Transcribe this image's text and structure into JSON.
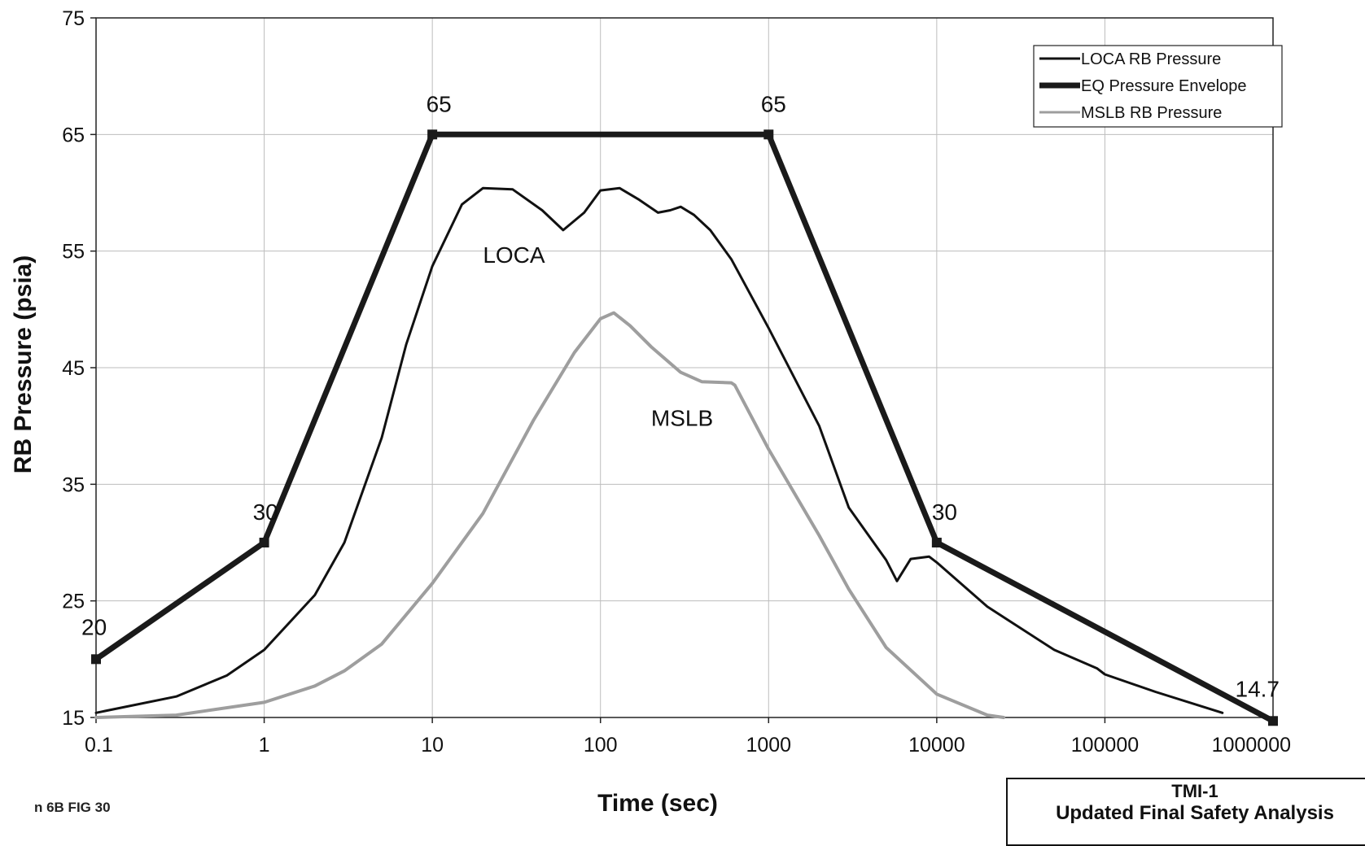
{
  "chart_data": {
    "type": "line",
    "xlabel": "Time (sec)",
    "ylabel": "RB Pressure (psia)",
    "xscale": "log",
    "xlim": [
      0.1,
      1000000
    ],
    "ylim": [
      15,
      75
    ],
    "x_ticks": [
      0.1,
      1,
      10,
      100,
      1000,
      10000,
      100000,
      1000000
    ],
    "x_tick_labels": [
      "0.1",
      "1",
      "10",
      "100",
      "1000",
      "10000",
      "100000",
      "1000000"
    ],
    "y_ticks": [
      15,
      25,
      35,
      45,
      55,
      65,
      75
    ],
    "y_tick_labels": [
      "15",
      "25",
      "35",
      "45",
      "55",
      "65",
      "75"
    ],
    "grid": true,
    "legend_position": "top-right",
    "series": [
      {
        "name": "LOCA RB Pressure",
        "color": "#111111",
        "x": [
          0.1,
          0.3,
          0.6,
          1,
          2,
          3,
          5,
          7,
          10,
          15,
          20,
          30,
          45,
          60,
          80,
          100,
          130,
          170,
          220,
          260,
          300,
          360,
          450,
          600,
          1000,
          2000,
          3000,
          5000,
          5800,
          7000,
          9000,
          10000,
          20000,
          50000,
          90000,
          100000,
          200000,
          500000
        ],
        "y": [
          15.4,
          16.8,
          18.6,
          20.8,
          25.5,
          30,
          39,
          47,
          53.7,
          59,
          60.4,
          60.3,
          58.5,
          56.8,
          58.3,
          60.2,
          60.4,
          59.4,
          58.3,
          58.5,
          58.8,
          58.1,
          56.8,
          54.3,
          48.4,
          40,
          33,
          28.5,
          26.7,
          28.6,
          28.8,
          28.3,
          24.5,
          20.8,
          19.2,
          18.7,
          17.2,
          15.4
        ]
      },
      {
        "name": "EQ Pressure Envelope",
        "color": "#1a1a1a",
        "x": [
          0.1,
          1,
          10,
          1000,
          10000,
          1000000
        ],
        "y": [
          20,
          30,
          65,
          65,
          30,
          14.7
        ]
      },
      {
        "name": "MSLB RB Pressure",
        "color": "#9e9e9e",
        "x": [
          0.1,
          0.3,
          1,
          2,
          3,
          5,
          10,
          20,
          40,
          70,
          100,
          120,
          150,
          200,
          300,
          400,
          600,
          630,
          1000,
          2000,
          3000,
          5000,
          10000,
          20000,
          25000
        ],
        "y": [
          15,
          15.2,
          16.3,
          17.7,
          19,
          21.3,
          26.5,
          32.5,
          40.5,
          46.3,
          49.2,
          49.7,
          48.6,
          46.8,
          44.6,
          43.8,
          43.7,
          43.5,
          38,
          30.6,
          26,
          21,
          17,
          15.2,
          15
        ]
      }
    ],
    "annotations": [
      {
        "text": "20",
        "x": 0.1,
        "y": 20
      },
      {
        "text": "30",
        "x": 1,
        "y": 30
      },
      {
        "text": "65",
        "x": 10,
        "y": 65
      },
      {
        "text": "65",
        "x": 1000,
        "y": 65
      },
      {
        "text": "30",
        "x": 10000,
        "y": 30
      },
      {
        "text": "14.7",
        "x": 1000000,
        "y": 14.7
      },
      {
        "text": "LOCA",
        "x": 20,
        "y": 54
      },
      {
        "text": "MSLB",
        "x": 200,
        "y": 40
      }
    ]
  },
  "footer": {
    "figure_id": "n 6B FIG 30",
    "box_title": "TMI-1",
    "box_subtitle": "Updated Final Safety Analysis"
  }
}
